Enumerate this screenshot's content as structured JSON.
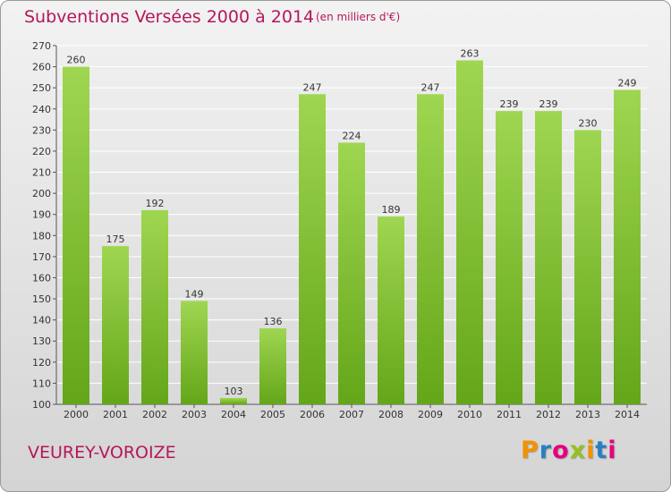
{
  "header": {
    "title": "Subventions Versées 2000 à 2014",
    "subtitle": "(en milliers d'€)"
  },
  "footer": {
    "commune": "VEUREY-VOROIZE",
    "brand": "Proxiti",
    "brand_colors": [
      "#f39200",
      "#2a7fc1",
      "#e5007d",
      "#95c11f",
      "#f39200",
      "#2a7fc1",
      "#e5007d"
    ]
  },
  "chart_data": {
    "type": "bar",
    "categories": [
      "2000",
      "2001",
      "2002",
      "2003",
      "2004",
      "2005",
      "2006",
      "2007",
      "2008",
      "2009",
      "2010",
      "2011",
      "2012",
      "2013",
      "2014"
    ],
    "values": [
      260,
      175,
      192,
      149,
      103,
      136,
      247,
      224,
      189,
      247,
      263,
      239,
      239,
      230,
      249
    ],
    "data_labels": [
      "260",
      "175",
      "192",
      "149",
      "103",
      "136",
      "247",
      "224",
      "189",
      "247",
      "263",
      "239",
      "239",
      "230",
      "249"
    ],
    "title": "Subventions Versées 2000 à 2014",
    "xlabel": "",
    "ylabel": "",
    "ylim": [
      100,
      270
    ],
    "yticks": [
      100,
      110,
      120,
      130,
      140,
      150,
      160,
      170,
      180,
      190,
      200,
      210,
      220,
      230,
      240,
      250,
      260,
      270
    ],
    "grid": true,
    "bar_color_light": "#9fd651",
    "bar_color_dark": "#64a619",
    "grid_color": "#ffffff"
  }
}
